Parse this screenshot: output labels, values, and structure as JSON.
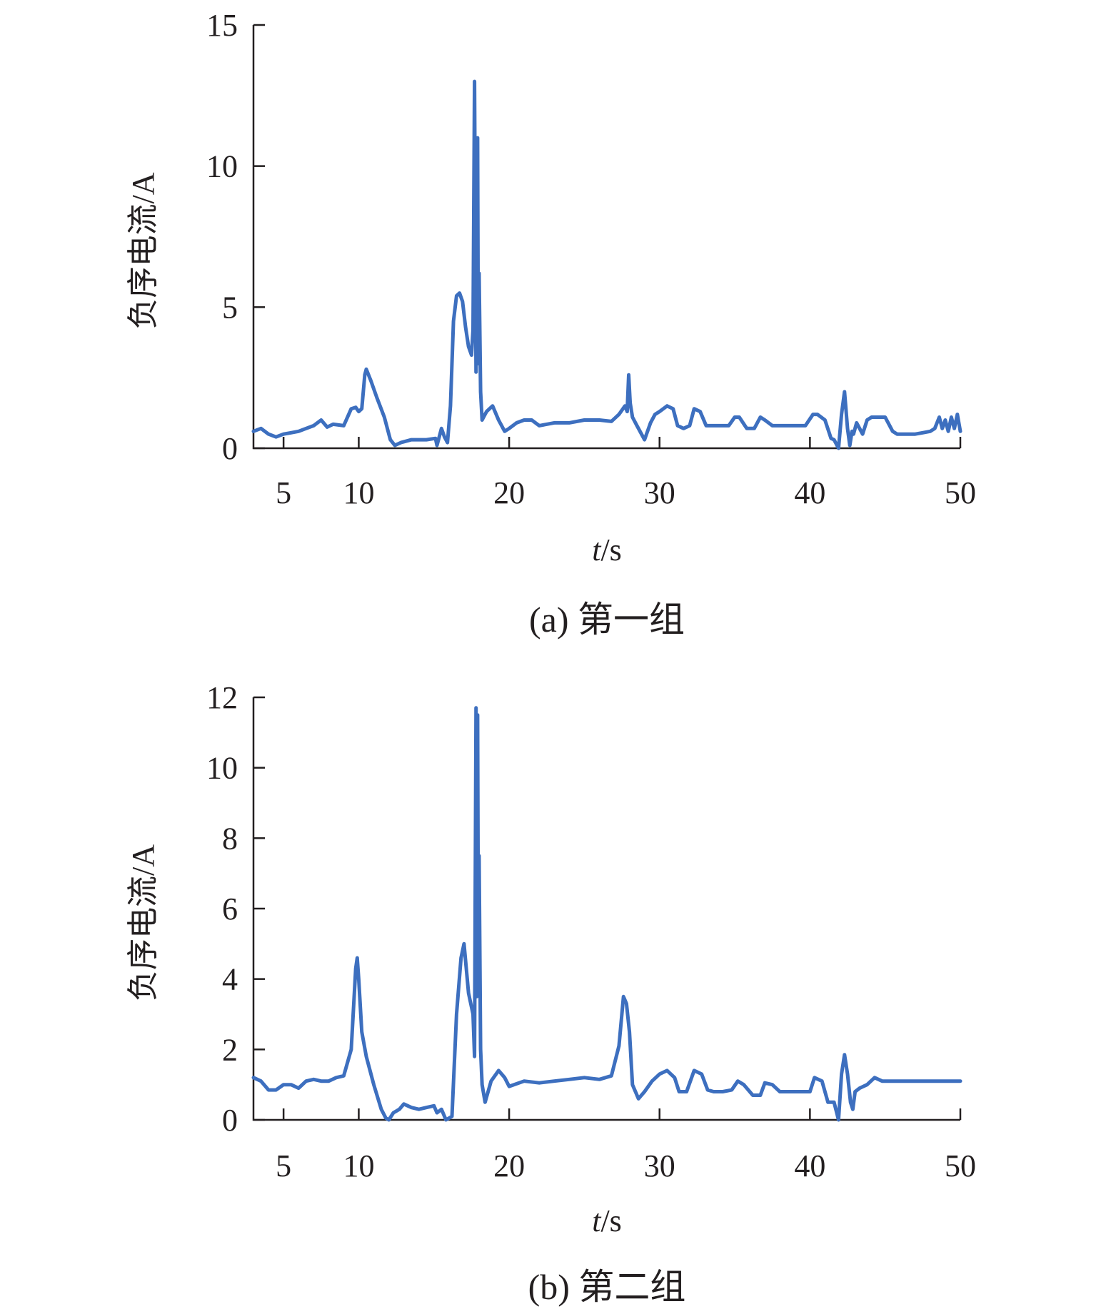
{
  "chart_data": [
    {
      "type": "line",
      "caption": "(a) 第一组",
      "xlabel": "t/s",
      "ylabel": "负序电流/A",
      "xlim": [
        3,
        50
      ],
      "ylim": [
        0,
        15
      ],
      "xticks": [
        5,
        10,
        20,
        30,
        40,
        50
      ],
      "yticks": [
        0,
        5,
        10,
        15
      ],
      "grid": false,
      "color": "#3d6fbf",
      "series": [
        {
          "x": [
            3.0,
            3.5,
            4.0,
            4.5,
            5.0,
            5.5,
            6.0,
            6.5,
            7.0,
            7.5,
            7.9,
            8.3,
            9.0,
            9.5,
            9.8,
            10.0,
            10.2,
            10.4,
            10.5,
            10.8,
            11.2,
            11.7,
            12.1,
            12.4,
            12.8,
            13.5,
            14.5,
            15.1,
            15.2,
            15.5,
            15.7,
            15.9,
            16.1,
            16.3,
            16.5,
            16.7,
            16.9,
            17.1,
            17.3,
            17.5,
            17.6,
            17.7,
            17.8,
            17.85,
            17.9,
            17.95,
            18.0,
            18.1,
            18.2,
            18.3,
            18.5,
            18.9,
            19.3,
            19.7,
            20.0,
            20.5,
            21.0,
            21.5,
            22.0,
            23.0,
            24.0,
            25.0,
            26.0,
            26.8,
            27.3,
            27.7,
            27.85,
            27.95,
            28.05,
            28.2,
            28.5,
            29.0,
            29.4,
            29.7,
            30.0,
            30.5,
            30.9,
            31.2,
            31.6,
            32.0,
            32.3,
            32.7,
            33.1,
            33.5,
            34.0,
            34.6,
            35.0,
            35.3,
            35.8,
            36.3,
            36.7,
            37.0,
            37.5,
            37.9,
            38.3,
            39.0,
            39.7,
            40.2,
            40.5,
            41.0,
            41.4,
            41.6,
            41.9,
            42.1,
            42.3,
            42.5,
            42.65,
            42.8,
            42.9,
            43.1,
            43.5,
            43.8,
            44.1,
            44.5,
            45.0,
            45.5,
            45.8,
            46.0,
            46.5,
            47.0,
            47.5,
            48.0,
            48.3,
            48.6,
            48.8,
            49.0,
            49.2,
            49.4,
            49.6,
            49.8,
            50.0
          ],
          "y": [
            0.6,
            0.7,
            0.5,
            0.4,
            0.5,
            0.55,
            0.6,
            0.7,
            0.8,
            1.0,
            0.75,
            0.85,
            0.8,
            1.4,
            1.45,
            1.3,
            1.4,
            2.6,
            2.8,
            2.4,
            1.8,
            1.1,
            0.3,
            0.1,
            0.2,
            0.3,
            0.3,
            0.35,
            0.1,
            0.7,
            0.4,
            0.2,
            1.5,
            4.5,
            5.4,
            5.5,
            5.2,
            4.3,
            3.6,
            3.3,
            4.2,
            13.0,
            2.7,
            6.5,
            11.0,
            3.0,
            6.2,
            2.0,
            1.0,
            1.1,
            1.3,
            1.5,
            1.0,
            0.6,
            0.7,
            0.9,
            1.0,
            1.0,
            0.8,
            0.9,
            0.9,
            1.0,
            1.0,
            0.95,
            1.2,
            1.5,
            1.3,
            2.6,
            1.6,
            1.1,
            0.8,
            0.3,
            0.9,
            1.2,
            1.3,
            1.5,
            1.4,
            0.8,
            0.7,
            0.8,
            1.4,
            1.3,
            0.8,
            0.8,
            0.8,
            0.8,
            1.1,
            1.1,
            0.7,
            0.7,
            1.1,
            1.0,
            0.8,
            0.8,
            0.8,
            0.8,
            0.8,
            1.2,
            1.2,
            1.0,
            0.35,
            0.3,
            0.0,
            1.2,
            2.0,
            0.7,
            0.1,
            0.6,
            0.5,
            0.9,
            0.5,
            1.0,
            1.1,
            1.1,
            1.1,
            0.6,
            0.5,
            0.5,
            0.5,
            0.5,
            0.55,
            0.6,
            0.7,
            1.1,
            0.7,
            1.0,
            0.6,
            1.1,
            0.7,
            1.2,
            0.6
          ]
        }
      ]
    },
    {
      "type": "line",
      "caption": "(b) 第二组",
      "xlabel": "t/s",
      "ylabel": "负序电流/A",
      "xlim": [
        3,
        50
      ],
      "ylim": [
        0,
        12
      ],
      "xticks": [
        5,
        10,
        20,
        30,
        40,
        50
      ],
      "yticks": [
        0,
        2,
        4,
        6,
        8,
        10,
        12
      ],
      "grid": false,
      "color": "#3d6fbf",
      "series": [
        {
          "x": [
            3.0,
            3.5,
            4.0,
            4.5,
            5.0,
            5.5,
            6.0,
            6.5,
            7.0,
            7.5,
            8.0,
            8.5,
            9.0,
            9.5,
            9.8,
            9.9,
            10.0,
            10.2,
            10.5,
            11.0,
            11.5,
            11.8,
            12.0,
            12.3,
            12.7,
            13.0,
            13.5,
            14.0,
            14.5,
            15.0,
            15.2,
            15.5,
            15.8,
            16.2,
            16.5,
            16.8,
            17.0,
            17.3,
            17.6,
            17.7,
            17.8,
            17.85,
            17.9,
            17.95,
            18.0,
            18.1,
            18.2,
            18.4,
            18.8,
            19.3,
            19.7,
            20.0,
            21.0,
            22.0,
            23.0,
            24.0,
            25.0,
            26.0,
            26.8,
            27.3,
            27.6,
            27.8,
            28.0,
            28.2,
            28.6,
            29.0,
            29.5,
            30.0,
            30.5,
            31.0,
            31.3,
            31.8,
            32.3,
            32.8,
            33.2,
            33.6,
            34.2,
            34.8,
            35.2,
            35.6,
            36.2,
            36.7,
            37.0,
            37.5,
            38.0,
            38.5,
            39.2,
            40.0,
            40.3,
            40.8,
            41.2,
            41.6,
            41.9,
            42.1,
            42.3,
            42.5,
            42.7,
            42.85,
            43.0,
            43.3,
            43.8,
            44.3,
            44.8,
            45.5,
            46.2,
            47.0,
            48.0,
            49.0,
            50.0
          ],
          "y": [
            1.2,
            1.1,
            0.85,
            0.85,
            1.0,
            1.0,
            0.9,
            1.1,
            1.15,
            1.1,
            1.1,
            1.2,
            1.25,
            2.0,
            4.3,
            4.6,
            4.0,
            2.5,
            1.8,
            1.0,
            0.3,
            0.05,
            0.0,
            0.2,
            0.3,
            0.45,
            0.35,
            0.3,
            0.35,
            0.4,
            0.2,
            0.3,
            0.0,
            0.1,
            3.0,
            4.6,
            5.0,
            3.6,
            3.0,
            1.8,
            11.7,
            3.5,
            11.5,
            5.0,
            7.5,
            2.0,
            1.0,
            0.5,
            1.1,
            1.4,
            1.2,
            0.95,
            1.1,
            1.05,
            1.1,
            1.15,
            1.2,
            1.15,
            1.25,
            2.1,
            3.5,
            3.3,
            2.5,
            1.0,
            0.6,
            0.8,
            1.1,
            1.3,
            1.4,
            1.2,
            0.8,
            0.8,
            1.4,
            1.3,
            0.85,
            0.8,
            0.8,
            0.85,
            1.1,
            1.0,
            0.7,
            0.7,
            1.05,
            1.0,
            0.8,
            0.8,
            0.8,
            0.8,
            1.2,
            1.1,
            0.5,
            0.5,
            0.0,
            1.3,
            1.85,
            1.3,
            0.5,
            0.3,
            0.8,
            0.9,
            1.0,
            1.2,
            1.1,
            1.1,
            1.1,
            1.1,
            1.1,
            1.1,
            1.1
          ]
        }
      ]
    }
  ]
}
